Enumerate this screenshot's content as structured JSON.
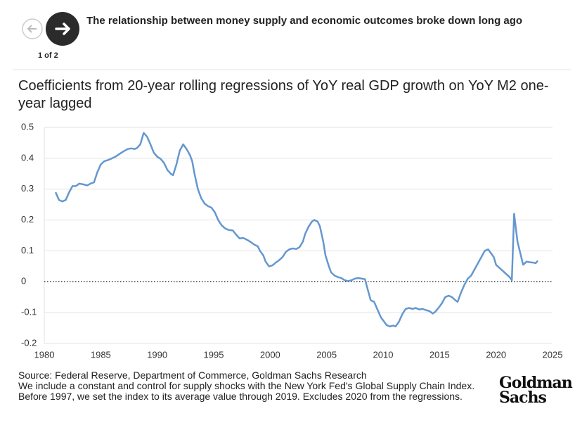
{
  "header": {
    "title": "The relationship between money supply and economic outcomes broke down long ago",
    "pager": "1 of 2"
  },
  "chart_data": {
    "type": "line",
    "title": "Coefficients from 20-year rolling regressions of YoY real GDP growth on YoY M2 one-year lagged",
    "color": "#6497cf",
    "xlim": [
      1980,
      2025
    ],
    "xticks": [
      1980,
      1985,
      1990,
      1995,
      2000,
      2005,
      2010,
      2015,
      2020,
      2025
    ],
    "ylim": [
      -0.2,
      0.5
    ],
    "yticks": [
      0.5,
      0.4,
      0.3,
      0.2,
      0.1,
      0,
      -0.1,
      -0.2
    ],
    "grid": true,
    "x": [
      1981,
      1981.3,
      1981.6,
      1981.9,
      1982.2,
      1982.5,
      1982.8,
      1983.1,
      1983.5,
      1983.8,
      1984.1,
      1984.4,
      1984.7,
      1985,
      1985.3,
      1985.7,
      1986,
      1986.3,
      1986.7,
      1987,
      1987.4,
      1987.7,
      1988,
      1988.2,
      1988.5,
      1988.8,
      1989.1,
      1989.4,
      1989.7,
      1990,
      1990.3,
      1990.6,
      1990.9,
      1991.2,
      1991.4,
      1991.7,
      1992,
      1992.3,
      1992.6,
      1992.9,
      1993.1,
      1993.3,
      1993.6,
      1993.9,
      1994.2,
      1994.5,
      1994.8,
      1995.1,
      1995.4,
      1995.7,
      1996,
      1996.3,
      1996.7,
      1997,
      1997.3,
      1997.6,
      1998,
      1998.3,
      1998.6,
      1998.9,
      1999.1,
      1999.4,
      1999.6,
      1999.9,
      2000.2,
      2000.5,
      2000.8,
      2001.1,
      2001.4,
      2001.7,
      2002,
      2002.3,
      2002.6,
      2002.9,
      2003.1,
      2003.4,
      2003.7,
      2003.9,
      2004.2,
      2004.4,
      2004.7,
      2004.9,
      2005.2,
      2005.4,
      2005.7,
      2006,
      2006.3,
      2006.6,
      2006.9,
      2007.2,
      2007.5,
      2007.8,
      2008.1,
      2008.4,
      2008.6,
      2008.9,
      2009.2,
      2009.5,
      2009.8,
      2010,
      2010.3,
      2010.6,
      2010.9,
      2011.1,
      2011.4,
      2011.7,
      2012,
      2012.3,
      2012.6,
      2012.9,
      2013.2,
      2013.5,
      2013.8,
      2014.1,
      2014.4,
      2014.6,
      2014.9,
      2015.2,
      2015.5,
      2015.8,
      2016.1,
      2016.4,
      2016.6,
      2016.9,
      2017.2,
      2017.5,
      2017.8,
      2018.1,
      2018.4,
      2018.7,
      2019,
      2019.3,
      2019.5,
      2019.8,
      2020,
      2020.3,
      2020.6,
      2020.9,
      2021.2,
      2021.4,
      2021.6,
      2021.9,
      2022.1,
      2022.4,
      2022.7,
      2023,
      2023.3,
      2023.5,
      2023.7
    ],
    "values": [
      0.29,
      0.265,
      0.26,
      0.265,
      0.29,
      0.31,
      0.31,
      0.318,
      0.315,
      0.312,
      0.318,
      0.322,
      0.355,
      0.38,
      0.39,
      0.395,
      0.4,
      0.405,
      0.415,
      0.422,
      0.43,
      0.432,
      0.43,
      0.433,
      0.445,
      0.482,
      0.47,
      0.445,
      0.418,
      0.405,
      0.398,
      0.385,
      0.362,
      0.35,
      0.345,
      0.38,
      0.425,
      0.445,
      0.43,
      0.41,
      0.39,
      0.35,
      0.3,
      0.27,
      0.253,
      0.245,
      0.24,
      0.225,
      0.2,
      0.183,
      0.173,
      0.168,
      0.166,
      0.152,
      0.14,
      0.142,
      0.135,
      0.128,
      0.12,
      0.115,
      0.1,
      0.085,
      0.065,
      0.05,
      0.053,
      0.062,
      0.07,
      0.08,
      0.097,
      0.105,
      0.108,
      0.106,
      0.112,
      0.13,
      0.155,
      0.178,
      0.195,
      0.2,
      0.195,
      0.18,
      0.13,
      0.085,
      0.05,
      0.03,
      0.02,
      0.015,
      0.012,
      0.005,
      0.002,
      0.005,
      0.01,
      0.012,
      0.01,
      0.008,
      -0.02,
      -0.06,
      -0.065,
      -0.09,
      -0.115,
      -0.125,
      -0.14,
      -0.145,
      -0.142,
      -0.145,
      -0.13,
      -0.105,
      -0.088,
      -0.085,
      -0.088,
      -0.085,
      -0.09,
      -0.088,
      -0.092,
      -0.095,
      -0.103,
      -0.098,
      -0.085,
      -0.07,
      -0.05,
      -0.045,
      -0.05,
      -0.06,
      -0.065,
      -0.035,
      -0.01,
      0.01,
      0.02,
      0.04,
      0.06,
      0.08,
      0.1,
      0.105,
      0.095,
      0.08,
      0.055,
      0.045,
      0.035,
      0.025,
      0.015,
      0.005,
      0.22,
      0.13,
      0.1,
      0.055,
      0.065,
      0.063,
      0.062,
      0.06,
      0.068
    ]
  },
  "footer": {
    "source": "Source: Federal Reserve, Department of Commerce, Goldman Sachs Research",
    "note": "We include a constant and control for supply shocks with the New York Fed's Global Supply Chain Index. Before 1997, we set the index to its average value through 2019. Excludes 2020 from the regressions."
  },
  "logo": [
    "Goldman",
    "Sachs"
  ]
}
